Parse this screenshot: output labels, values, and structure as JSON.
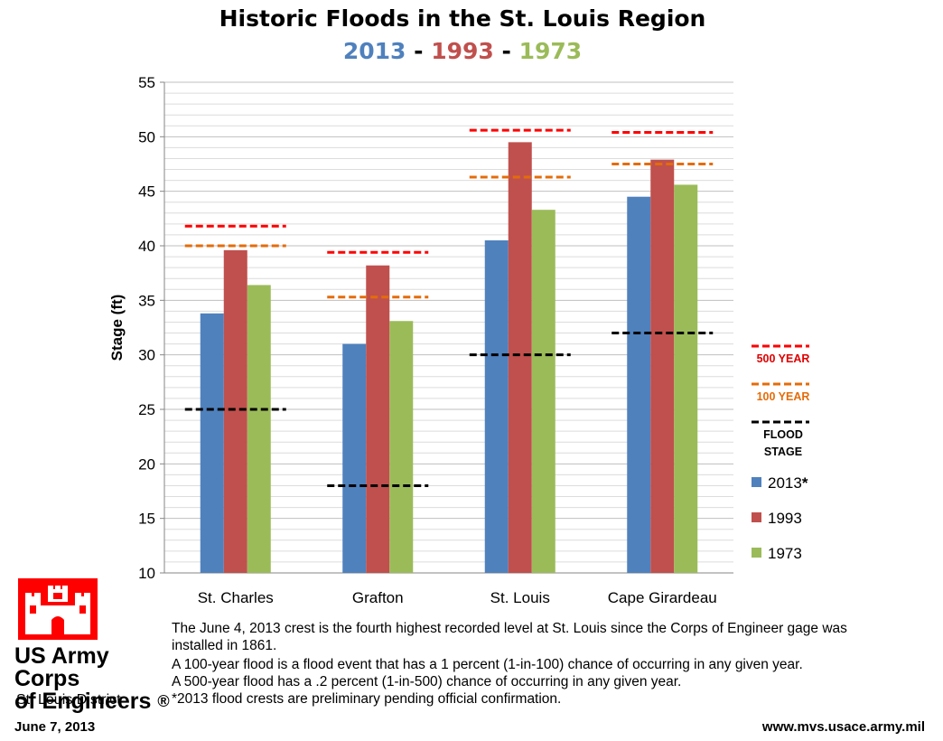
{
  "header": {
    "title": "Historic Floods in the St. Louis Region",
    "subtitle_parts": [
      {
        "text": "2013",
        "color": "#4f81bd"
      },
      {
        "text": " - ",
        "color": "#000000"
      },
      {
        "text": "1993",
        "color": "#c0504d"
      },
      {
        "text": " - ",
        "color": "#000000"
      },
      {
        "text": "1973",
        "color": "#9bbb59"
      }
    ]
  },
  "chart_data": {
    "type": "bar",
    "title": "Historic Floods in the St. Louis Region",
    "ylabel": "Stage (ft)",
    "xlabel": "",
    "ylim": [
      10,
      55
    ],
    "yticks": [
      10,
      15,
      20,
      25,
      30,
      35,
      40,
      45,
      50,
      55
    ],
    "grid": true,
    "categories": [
      "St. Charles",
      "Grafton",
      "St. Louis",
      "Cape Girardeau"
    ],
    "series": [
      {
        "name": "2013",
        "legend_label": "2013",
        "legend_suffix": "*",
        "color": "#4f81bd",
        "values": [
          33.8,
          31.0,
          40.5,
          44.5
        ]
      },
      {
        "name": "1993",
        "legend_label": "1993",
        "legend_suffix": "",
        "color": "#c0504d",
        "values": [
          39.6,
          38.2,
          49.5,
          47.9
        ]
      },
      {
        "name": "1973",
        "legend_label": "1973",
        "legend_suffix": "",
        "color": "#9bbb59",
        "values": [
          36.4,
          33.1,
          43.3,
          45.6
        ]
      }
    ],
    "reference_lines": [
      {
        "name": "500 YEAR",
        "label_lines": [
          "500 YEAR"
        ],
        "color": "#ff0000",
        "label_color": "#e00000",
        "values": [
          41.8,
          39.4,
          50.6,
          50.4
        ]
      },
      {
        "name": "100 YEAR",
        "label_lines": [
          "100 YEAR"
        ],
        "color": "#e46c0a",
        "label_color": "#e46c0a",
        "values": [
          40.0,
          35.3,
          46.3,
          47.5
        ]
      },
      {
        "name": "FLOOD STAGE",
        "label_lines": [
          "FLOOD",
          "STAGE"
        ],
        "color": "#000000",
        "label_color": "#000000",
        "values": [
          25.0,
          18.0,
          30.0,
          32.0
        ]
      }
    ],
    "legend_position": "right"
  },
  "notes": [
    "The June 4, 2013 crest is the fourth highest recorded level at St. Louis since the Corps of Engineer gage was installed in 1861.",
    "A 100-year flood is a flood event that has a 1 percent (1-in-100) chance of occurring in any given year.",
    "A 500-year flood has a .2 percent (1-in-500) chance of occurring in any given year.",
    "*2013 flood crests are preliminary pending official confirmation."
  ],
  "footer": {
    "org_line1": "US Army Corps",
    "org_line2": "of Engineers",
    "registered_mark": "®",
    "district": "St. Louis District",
    "date": "June 7, 2013",
    "url": "www.mvs.usace.army.mil",
    "logo_icon": "castle-icon",
    "logo_color": "#ff0000"
  }
}
